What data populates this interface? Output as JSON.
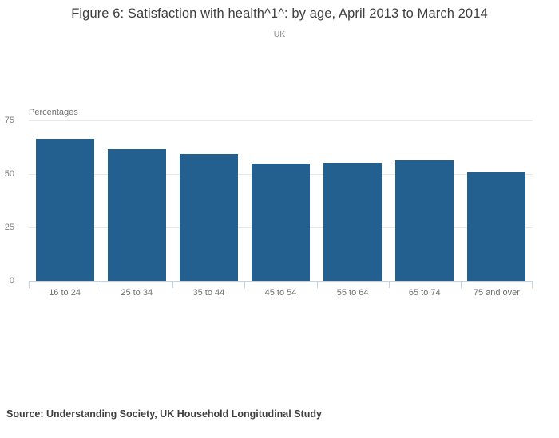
{
  "chart_data": {
    "type": "bar",
    "title": "Figure 6: Satisfaction with health^1^: by age, April 2013 to March 2014",
    "subtitle": "UK",
    "categories": [
      "16 to 24",
      "25 to 34",
      "35 to 44",
      "45 to 54",
      "55 to 64",
      "65 to 74",
      "75 and over"
    ],
    "values": [
      66.3,
      61.6,
      59.4,
      54.7,
      55.2,
      56.5,
      50.9
    ],
    "xlabel": "",
    "ylabel": "Percentages",
    "ylim": [
      0,
      75
    ],
    "yticks": [
      0,
      25,
      50,
      75
    ],
    "grid": true,
    "legend": "none",
    "bar_color": "#23608f",
    "grid_color": "#e7e7e7",
    "axis_color": "#c2d3e5",
    "source": "Source: Understanding Society, UK Household Longitudinal Study"
  }
}
